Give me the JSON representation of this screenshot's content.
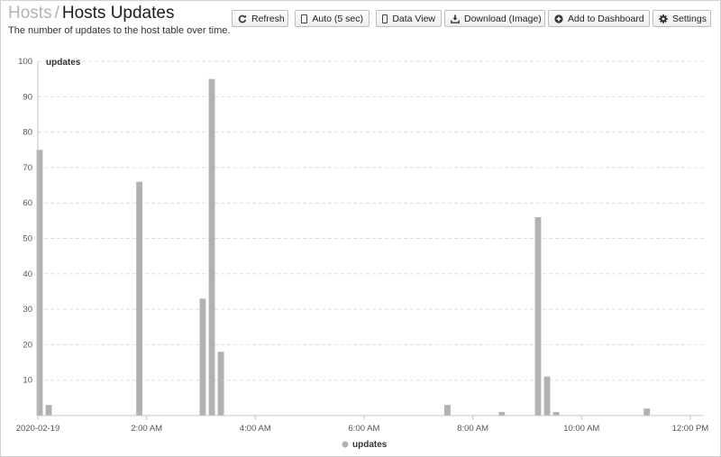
{
  "header": {
    "breadcrumb_parent": "Hosts",
    "separator": "/",
    "title": "Hosts Updates",
    "subtitle": "The number of updates to the host table over time."
  },
  "toolbar": {
    "refresh": "Refresh",
    "auto": "Auto (5 sec)",
    "data_view": "Data View",
    "download": "Download (Image)",
    "add_dashboard": "Add to Dashboard",
    "settings": "Settings"
  },
  "icons": {
    "refresh": "refresh-icon",
    "auto": "checkbox-icon",
    "data_view": "checkbox-icon",
    "download": "download-icon",
    "add_dashboard": "plus-circle-icon",
    "settings": "gear-icon"
  },
  "chart_data": {
    "type": "bar",
    "title": "",
    "xlabel": "",
    "ylabel": "",
    "ylim": [
      0,
      100
    ],
    "yticks": [
      10,
      20,
      30,
      40,
      50,
      60,
      70,
      80,
      90,
      100
    ],
    "xlim": [
      "2020-02-19 00:00",
      "2020-02-19 12:15"
    ],
    "xticks": [
      {
        "t": "2020-02-19 00:00",
        "label": "2020-02-19"
      },
      {
        "t": "2020-02-19 02:00",
        "label": "2:00 AM"
      },
      {
        "t": "2020-02-19 04:00",
        "label": "4:00 AM"
      },
      {
        "t": "2020-02-19 06:00",
        "label": "6:00 AM"
      },
      {
        "t": "2020-02-19 08:00",
        "label": "8:00 AM"
      },
      {
        "t": "2020-02-19 10:00",
        "label": "10:00 AM"
      },
      {
        "t": "2020-02-19 12:00",
        "label": "12:00 PM"
      }
    ],
    "grid": true,
    "legend_position": "bottom-center",
    "bar_color": "#b1b1b1",
    "series": [
      {
        "name": "updates",
        "points": [
          {
            "t": "2020-02-19 00:00",
            "v": 75
          },
          {
            "t": "2020-02-19 00:10",
            "v": 3
          },
          {
            "t": "2020-02-19 01:50",
            "v": 66
          },
          {
            "t": "2020-02-19 03:00",
            "v": 33
          },
          {
            "t": "2020-02-19 03:10",
            "v": 95
          },
          {
            "t": "2020-02-19 03:20",
            "v": 18
          },
          {
            "t": "2020-02-19 07:30",
            "v": 3
          },
          {
            "t": "2020-02-19 08:30",
            "v": 1
          },
          {
            "t": "2020-02-19 09:10",
            "v": 56
          },
          {
            "t": "2020-02-19 09:20",
            "v": 11
          },
          {
            "t": "2020-02-19 09:30",
            "v": 1
          },
          {
            "t": "2020-02-19 11:10",
            "v": 2
          }
        ]
      }
    ]
  }
}
